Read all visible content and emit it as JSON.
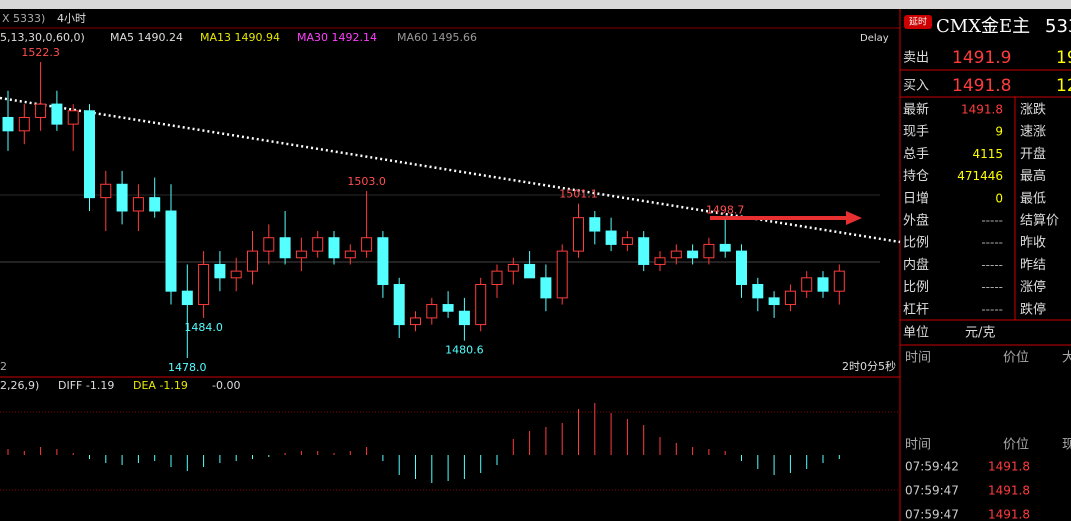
{
  "header": {
    "symbol_tab": "X 5333)",
    "period": "4小时"
  },
  "indicators": {
    "params": "5,13,30,0,60,0)",
    "ma5": "MA5 1490.24",
    "ma13": "MA13 1490.94",
    "ma30": "MA30 1492.14",
    "ma60": "MA60 1495.66",
    "delay": "Delay"
  },
  "chart_data": {
    "type": "candlestick",
    "candles": [
      [
        1514,
        1518,
        1509,
        1512
      ],
      [
        1512,
        1516,
        1510,
        1514
      ],
      [
        1514,
        1522.3,
        1512,
        1516
      ],
      [
        1516,
        1518,
        1512,
        1513
      ],
      [
        1513,
        1516,
        1509,
        1515
      ],
      [
        1515,
        1516,
        1500,
        1502
      ],
      [
        1502,
        1506,
        1497,
        1504
      ],
      [
        1504,
        1506,
        1498,
        1500
      ],
      [
        1500,
        1504,
        1497,
        1502
      ],
      [
        1502,
        1505,
        1499,
        1500
      ],
      [
        1500,
        1504,
        1486,
        1488
      ],
      [
        1488,
        1492,
        1478,
        1486
      ],
      [
        1486,
        1494,
        1484,
        1492
      ],
      [
        1492,
        1494,
        1488,
        1490
      ],
      [
        1490,
        1493,
        1488,
        1491
      ],
      [
        1491,
        1497,
        1489,
        1494
      ],
      [
        1494,
        1498,
        1492,
        1496
      ],
      [
        1496,
        1500,
        1492,
        1493
      ],
      [
        1493,
        1496,
        1491,
        1494
      ],
      [
        1494,
        1497,
        1493,
        1496
      ],
      [
        1496,
        1497,
        1492,
        1493
      ],
      [
        1493,
        1495,
        1492,
        1494
      ],
      [
        1494,
        1503,
        1493,
        1496
      ],
      [
        1496,
        1497,
        1487,
        1489
      ],
      [
        1489,
        1490,
        1481,
        1483
      ],
      [
        1483,
        1485,
        1482,
        1484
      ],
      [
        1484,
        1487,
        1483,
        1486
      ],
      [
        1486,
        1488,
        1484,
        1485
      ],
      [
        1485,
        1487,
        1480.6,
        1483
      ],
      [
        1483,
        1490,
        1482,
        1489
      ],
      [
        1489,
        1492,
        1487,
        1491
      ],
      [
        1491,
        1493,
        1489,
        1492
      ],
      [
        1492,
        1494,
        1490,
        1490
      ],
      [
        1490,
        1492,
        1485,
        1487
      ],
      [
        1487,
        1495,
        1486,
        1494
      ],
      [
        1494,
        1501.1,
        1493,
        1499
      ],
      [
        1499,
        1500,
        1495,
        1497
      ],
      [
        1497,
        1499,
        1494,
        1495
      ],
      [
        1495,
        1497,
        1494,
        1496
      ],
      [
        1496,
        1497,
        1491,
        1492
      ],
      [
        1492,
        1494,
        1491,
        1493
      ],
      [
        1493,
        1495,
        1492,
        1494
      ],
      [
        1494,
        1495,
        1492,
        1493
      ],
      [
        1493,
        1496,
        1492,
        1495
      ],
      [
        1495,
        1498.7,
        1493,
        1494
      ],
      [
        1494,
        1495,
        1487,
        1489
      ],
      [
        1489,
        1490,
        1485,
        1487
      ],
      [
        1487,
        1488,
        1484,
        1486
      ],
      [
        1486,
        1489,
        1485,
        1488
      ],
      [
        1488,
        1491,
        1487,
        1490
      ],
      [
        1490,
        1491,
        1487,
        1488
      ],
      [
        1488,
        1492,
        1486,
        1491
      ]
    ],
    "annotations": [
      1522.3,
      {
        "value": 1503,
        "label": "1503.0"
      },
      1501.1,
      1498.7,
      {
        "value": 1478,
        "label": "1478.0"
      },
      1480.6,
      {
        "value": 1484,
        "label": "1484.0"
      }
    ],
    "macd_hist": [
      0.3,
      0.2,
      0.4,
      0.3,
      0.1,
      -0.2,
      -0.4,
      -0.5,
      -0.4,
      -0.3,
      -0.6,
      -0.8,
      -0.6,
      -0.4,
      -0.3,
      -0.2,
      -0.1,
      0.1,
      0.2,
      0.2,
      0.1,
      0.2,
      0.4,
      -0.3,
      -1.0,
      -1.2,
      -1.4,
      -1.3,
      -1.2,
      -0.9,
      -0.5,
      0.8,
      1.2,
      1.4,
      1.6,
      2.3,
      2.6,
      2.1,
      1.8,
      1.5,
      0.9,
      0.6,
      0.4,
      0.3,
      0.2,
      -0.3,
      -0.7,
      -1.0,
      -0.9,
      -0.7,
      -0.4,
      -0.2
    ]
  },
  "footer": {
    "left": "2",
    "countdown": "2时0分5秒"
  },
  "macd": {
    "params": "2,26,9)",
    "diff": "DIFF -1.19",
    "dea": "DEA -1.19",
    "macd": "-0.00"
  },
  "quote": {
    "badge": "延时",
    "title": "CMX金E主",
    "code": "533",
    "sell": {
      "label": "卖出",
      "price": "1491.9",
      "volume": "19"
    },
    "buy": {
      "label": "买入",
      "price": "1491.8",
      "volume": "12"
    },
    "left": [
      [
        "最新",
        "1491.8"
      ],
      [
        "现手",
        "9"
      ],
      [
        "总手",
        "4115"
      ],
      [
        "持仓",
        "471446"
      ],
      [
        "日增",
        "0"
      ],
      [
        "外盘",
        "-----"
      ],
      [
        "比例",
        "-----"
      ],
      [
        "内盘",
        "-----"
      ],
      [
        "比例",
        "-----"
      ],
      [
        "杠杆",
        "-----"
      ]
    ],
    "right": [
      "涨跌",
      "速涨",
      "开盘",
      "最高",
      "最低",
      "结算价",
      "昨收",
      "昨结",
      "涨停",
      "跌停"
    ],
    "unit": [
      "单位",
      "元/克"
    ],
    "head1": [
      "时间",
      "价位",
      "大"
    ],
    "head2": [
      "时间",
      "价位",
      "现"
    ],
    "trades": [
      [
        "07:59:42",
        "1491.8"
      ],
      [
        "07:59:47",
        "1491.8"
      ],
      [
        "07:59:47",
        "1491.8"
      ]
    ]
  }
}
